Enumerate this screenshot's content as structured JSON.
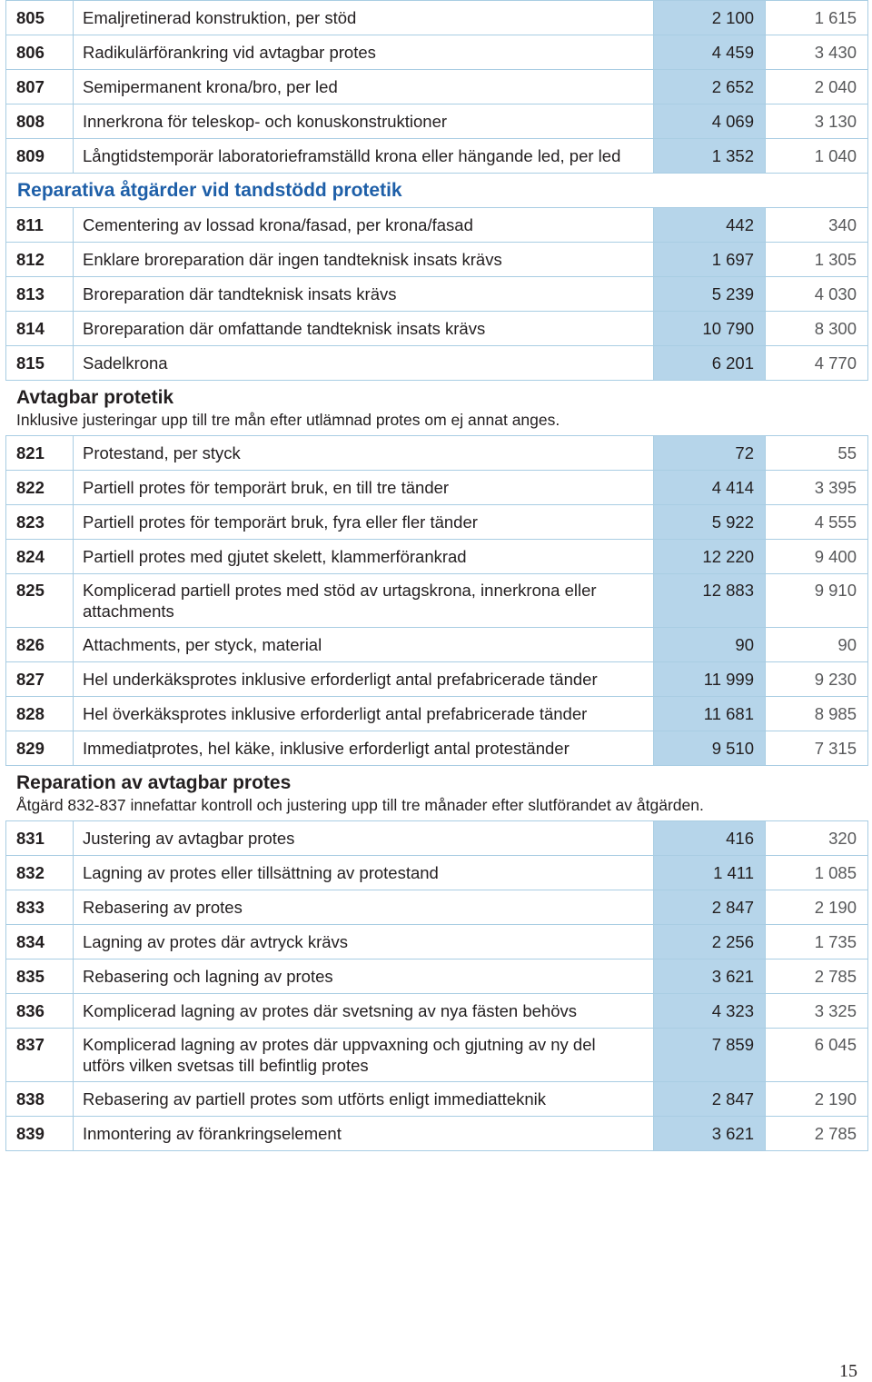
{
  "group1_rows": [
    {
      "code": "805",
      "desc": "Emaljretinerad konstruktion, per stöd",
      "price_a": "2 100",
      "price_b": "1 615"
    },
    {
      "code": "806",
      "desc": "Radikulärförankring vid avtagbar protes",
      "price_a": "4 459",
      "price_b": "3 430"
    },
    {
      "code": "807",
      "desc": "Semipermanent krona/bro, per led",
      "price_a": "2 652",
      "price_b": "2 040"
    },
    {
      "code": "808",
      "desc": "Innerkrona för teleskop- och konuskonstruktioner",
      "price_a": "4 069",
      "price_b": "3 130"
    },
    {
      "code": "809",
      "desc": "Långtidstemporär laboratorieframställd krona eller hängande led, per led",
      "price_a": "1 352",
      "price_b": "1 040"
    }
  ],
  "section_reparativa": {
    "title": "Reparativa åtgärder vid tandstödd protetik"
  },
  "group2_rows": [
    {
      "code": "811",
      "desc": "Cementering av lossad krona/fasad, per krona/fasad",
      "price_a": "442",
      "price_b": "340"
    },
    {
      "code": "812",
      "desc": "Enklare broreparation där ingen tandteknisk insats krävs",
      "price_a": "1 697",
      "price_b": "1 305"
    },
    {
      "code": "813",
      "desc": "Broreparation där tandteknisk insats krävs",
      "price_a": "5 239",
      "price_b": "4 030"
    },
    {
      "code": "814",
      "desc": "Broreparation där omfattande tandteknisk insats krävs",
      "price_a": "10 790",
      "price_b": "8 300"
    },
    {
      "code": "815",
      "desc": "Sadelkrona",
      "price_a": "6 201",
      "price_b": "4 770"
    }
  ],
  "section_avtagbar": {
    "title": "Avtagbar protetik",
    "note": "Inklusive justeringar upp till tre mån efter utlämnad protes om ej annat anges."
  },
  "group3_rows": [
    {
      "code": "821",
      "desc": "Protestand, per styck",
      "price_a": "72",
      "price_b": "55"
    },
    {
      "code": "822",
      "desc": "Partiell protes för temporärt bruk, en till tre tänder",
      "price_a": "4 414",
      "price_b": "3 395"
    },
    {
      "code": "823",
      "desc": "Partiell protes för temporärt bruk, fyra eller fler tänder",
      "price_a": "5 922",
      "price_b": "4 555"
    },
    {
      "code": "824",
      "desc": "Partiell protes med gjutet skelett, klammerförankrad",
      "price_a": "12 220",
      "price_b": "9 400"
    },
    {
      "code": "825",
      "desc": "Komplicerad partiell protes med stöd av urtagskrona, innerkrona eller attachments",
      "price_a": "12 883",
      "price_b": "9 910"
    },
    {
      "code": "826",
      "desc": "Attachments, per styck, material",
      "price_a": "90",
      "price_b": "90"
    },
    {
      "code": "827",
      "desc": "Hel underkäksprotes inklusive erforderligt antal prefabricerade tänder",
      "price_a": "11 999",
      "price_b": "9 230"
    },
    {
      "code": "828",
      "desc": "Hel överkäksprotes inklusive erforderligt antal prefabricerade tänder",
      "price_a": "11 681",
      "price_b": "8 985"
    },
    {
      "code": "829",
      "desc": "Immediatprotes, hel käke, inklusive erforderligt antal proteständer",
      "price_a": "9 510",
      "price_b": "7 315"
    }
  ],
  "section_reparation": {
    "title": "Reparation av avtagbar protes",
    "note": "Åtgärd 832-837 innefattar kontroll och justering upp till tre månader efter slutförandet av åtgärden."
  },
  "group4_rows": [
    {
      "code": "831",
      "desc": "Justering av avtagbar protes",
      "price_a": "416",
      "price_b": "320"
    },
    {
      "code": "832",
      "desc": "Lagning av protes eller tillsättning av protestand",
      "price_a": "1 411",
      "price_b": "1 085"
    },
    {
      "code": "833",
      "desc": "Rebasering av protes",
      "price_a": "2 847",
      "price_b": "2 190"
    },
    {
      "code": "834",
      "desc": "Lagning av protes där avtryck krävs",
      "price_a": "2 256",
      "price_b": "1 735"
    },
    {
      "code": "835",
      "desc": "Rebasering och lagning av protes",
      "price_a": "3 621",
      "price_b": "2 785"
    },
    {
      "code": "836",
      "desc": "Komplicerad lagning av protes där svetsning av nya fästen behövs",
      "price_a": "4 323",
      "price_b": "3 325"
    },
    {
      "code": "837",
      "desc": "Komplicerad lagning av protes där uppvaxning och gjutning av ny del utförs vilken svetsas till befintlig protes",
      "price_a": "7 859",
      "price_b": "6 045"
    },
    {
      "code": "838",
      "desc": "Rebasering av partiell protes som utförts enligt immediatteknik",
      "price_a": "2 847",
      "price_b": "2 190"
    },
    {
      "code": "839",
      "desc": "Inmontering av förankringselement",
      "price_a": "3 621",
      "price_b": "2 785"
    }
  ],
  "page_number": "15"
}
